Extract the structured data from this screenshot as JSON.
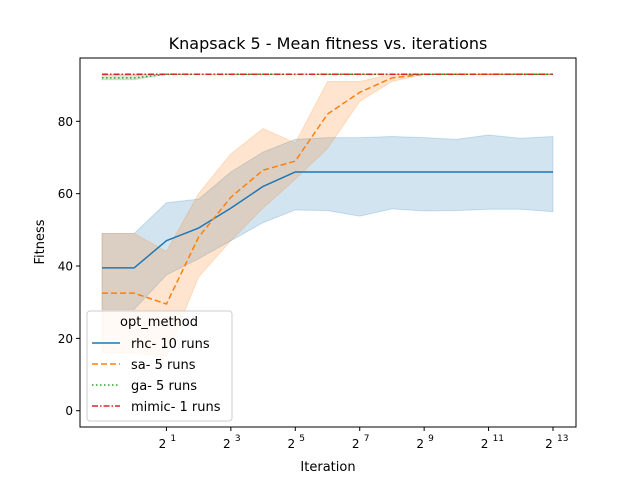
{
  "chart_data": {
    "type": "line",
    "title": "Knapsack 5 - Mean fitness vs. iterations",
    "xlabel": "Iteration",
    "ylabel": "Fitness",
    "x_scale": "log2",
    "x": [
      0.5,
      1,
      2,
      4,
      8,
      16,
      32,
      64,
      128,
      256,
      512,
      1024,
      2048,
      4096,
      8192
    ],
    "xlim": [
      0.5,
      8192
    ],
    "ylim": [
      -4.5,
      97.5
    ],
    "xticks": [
      {
        "value": 2,
        "base": "2",
        "exp": "1"
      },
      {
        "value": 8,
        "base": "2",
        "exp": "3"
      },
      {
        "value": 32,
        "base": "2",
        "exp": "5"
      },
      {
        "value": 128,
        "base": "2",
        "exp": "7"
      },
      {
        "value": 512,
        "base": "2",
        "exp": "9"
      },
      {
        "value": 2048,
        "base": "2",
        "exp": "11"
      },
      {
        "value": 8192,
        "base": "2",
        "exp": "13"
      }
    ],
    "yticks": [
      0,
      20,
      40,
      60,
      80
    ],
    "grid": false,
    "legend": {
      "title": "opt_method",
      "placement": "lower-left"
    },
    "series": [
      {
        "name": "rhc- 10 runs",
        "color": "#1f77b4",
        "dash": "solid",
        "values": [
          39.5,
          39.5,
          47.0,
          50.5,
          56.0,
          62.0,
          66.0,
          66.0,
          66.0,
          66.0,
          66.0,
          66.0,
          66.0,
          66.0,
          66.0
        ],
        "ci_lower": [
          28.0,
          28.0,
          37.5,
          42.0,
          47.0,
          52.0,
          55.5,
          55.3,
          53.8,
          55.8,
          55.2,
          55.3,
          55.7,
          55.7,
          55.0
        ],
        "ci_upper": [
          49.0,
          49.0,
          57.5,
          58.5,
          66.0,
          71.5,
          75.0,
          75.5,
          75.5,
          75.8,
          75.5,
          75.0,
          76.2,
          75.3,
          75.8
        ]
      },
      {
        "name": "sa- 5 runs",
        "color": "#ff7f0e",
        "dash": "dashed",
        "values": [
          32.5,
          32.5,
          29.5,
          48.0,
          59.0,
          66.5,
          69.0,
          82.0,
          88.0,
          92.0,
          93.0,
          93.0,
          93.0,
          93.0,
          93.0
        ],
        "ci_lower": [
          16.0,
          16.0,
          15.0,
          37.0,
          47.0,
          56.0,
          64.0,
          72.5,
          85.5,
          91.0,
          93.0,
          93.0,
          93.0,
          93.0,
          93.0
        ],
        "ci_upper": [
          49.0,
          49.0,
          44.0,
          60.0,
          71.0,
          78.0,
          74.0,
          91.0,
          91.0,
          93.0,
          93.0,
          93.0,
          93.0,
          93.0,
          93.0
        ]
      },
      {
        "name": "ga- 5 runs",
        "color": "#2ca02c",
        "dash": "dotted",
        "values": [
          92.0,
          92.0,
          93.0,
          93.0,
          93.0,
          93.0,
          93.0,
          93.0,
          93.0,
          93.0,
          93.0,
          93.0,
          93.0,
          93.0,
          93.0
        ],
        "ci_lower": [
          91.5,
          91.5,
          93.0,
          93.0,
          93.0,
          93.0,
          93.0,
          93.0,
          93.0,
          93.0,
          93.0,
          93.0,
          93.0,
          93.0,
          93.0
        ],
        "ci_upper": [
          92.8,
          92.8,
          93.0,
          93.0,
          93.0,
          93.0,
          93.0,
          93.0,
          93.0,
          93.0,
          93.0,
          93.0,
          93.0,
          93.0,
          93.0
        ]
      },
      {
        "name": "mimic- 1 runs",
        "color": "#d62728",
        "dash": "dashdot",
        "values": [
          93.0,
          93.0,
          93.0,
          93.0,
          93.0,
          93.0,
          93.0,
          93.0,
          93.0,
          93.0,
          93.0,
          93.0,
          93.0,
          93.0,
          93.0
        ],
        "ci_lower": [
          93.0,
          93.0,
          93.0,
          93.0,
          93.0,
          93.0,
          93.0,
          93.0,
          93.0,
          93.0,
          93.0,
          93.0,
          93.0,
          93.0,
          93.0
        ],
        "ci_upper": [
          93.0,
          93.0,
          93.0,
          93.0,
          93.0,
          93.0,
          93.0,
          93.0,
          93.0,
          93.0,
          93.0,
          93.0,
          93.0,
          93.0,
          93.0
        ]
      }
    ]
  }
}
